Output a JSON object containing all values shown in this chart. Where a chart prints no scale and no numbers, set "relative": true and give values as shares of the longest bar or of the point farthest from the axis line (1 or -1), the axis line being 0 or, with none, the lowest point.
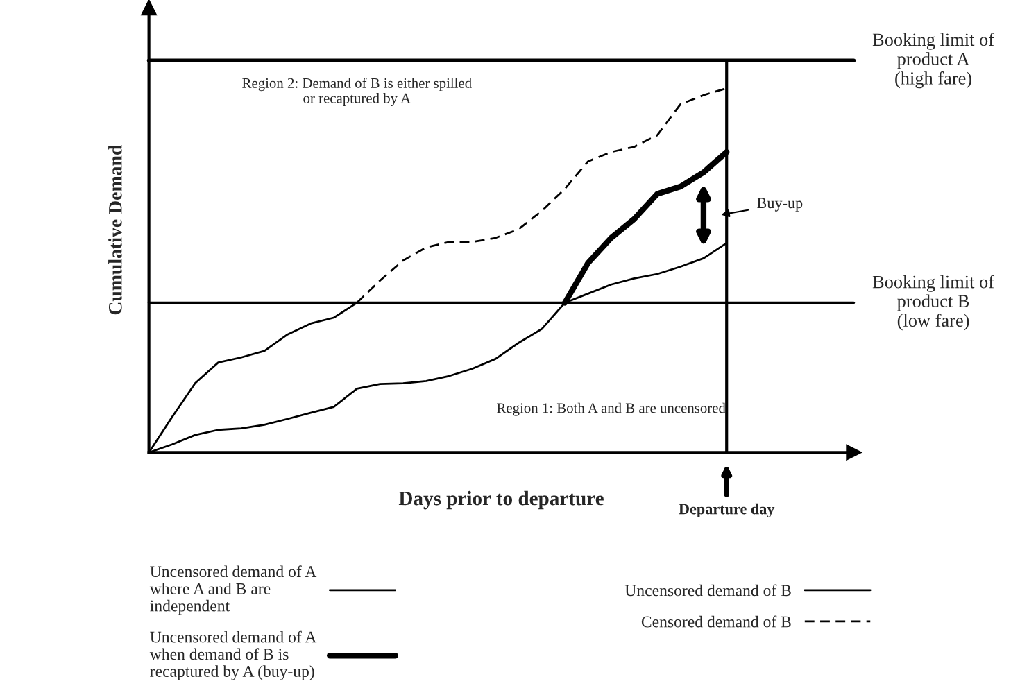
{
  "chart_data": {
    "type": "line",
    "relative": true,
    "xlabel": "Days prior to departure",
    "ylabel": "Cumulative Demand",
    "legend": "bottom",
    "marker": "none",
    "categories": [
      null,
      null,
      null,
      null,
      null,
      null,
      null,
      null,
      null,
      null,
      null,
      null,
      null,
      null,
      null,
      null,
      null,
      null,
      null,
      null,
      null,
      null,
      null,
      null,
      null,
      null
    ],
    "series": [
      {
        "name": "Uncensored demand of A\nwhere A and B are\nindependent",
        "color": "#000000",
        "line_style": "solid",
        "values": [
          0,
          0.022,
          0.048,
          0.062,
          0.066,
          0.076,
          0.092,
          0.109,
          0.125,
          0.175,
          0.188,
          0.19,
          0.196,
          0.21,
          0.23,
          0.257,
          0.301,
          0.339,
          0.411,
          0.436,
          0.461,
          0.478,
          0.49,
          0.51,
          0.533,
          0.575
        ]
      },
      {
        "name": "Uncensored demand of A\nwhen demand of B is\nrecaptured by A (buy-up)",
        "color": "#000000",
        "line_style": "solid",
        "values": [
          null,
          null,
          null,
          null,
          null,
          null,
          null,
          null,
          null,
          null,
          null,
          null,
          null,
          null,
          null,
          null,
          null,
          null,
          0.411,
          0.52,
          0.589,
          0.641,
          0.71,
          0.73,
          0.769,
          0.825
        ]
      },
      {
        "name": "Uncensored demand of B",
        "color": "#000000",
        "line_style": "solid",
        "values": [
          0,
          0.097,
          0.19,
          0.247,
          0.261,
          0.279,
          0.324,
          0.354,
          0.37,
          0.411,
          null,
          null,
          null,
          null,
          null,
          null,
          null,
          null,
          null,
          null,
          null,
          null,
          null,
          null,
          null,
          null
        ]
      },
      {
        "name": "Censored demand of B",
        "color": "#000000",
        "line_style": "dashed",
        "values": [
          null,
          null,
          null,
          null,
          null,
          null,
          null,
          null,
          null,
          0.411,
          0.472,
          0.527,
          0.563,
          0.578,
          0.578,
          0.589,
          0.613,
          0.663,
          0.724,
          0.799,
          0.825,
          0.839,
          0.871,
          0.956,
          0.981,
          1.0
        ]
      }
    ],
    "ref_lines": [
      {
        "axis": "y",
        "value": 1.076,
        "label": "Booking limit of\nproduct A\n(high fare)",
        "color": "#000000"
      },
      {
        "axis": "y",
        "value": 0.411,
        "label": "Booking limit of\nproduct B\n(low fare)",
        "color": "#000000"
      }
    ],
    "annotations": [
      "Region 2: Demand of B is either spilled\nor recaptured by A",
      "Region 1: Both A and B are uncensored",
      "Departure day",
      "Buy-up"
    ]
  }
}
